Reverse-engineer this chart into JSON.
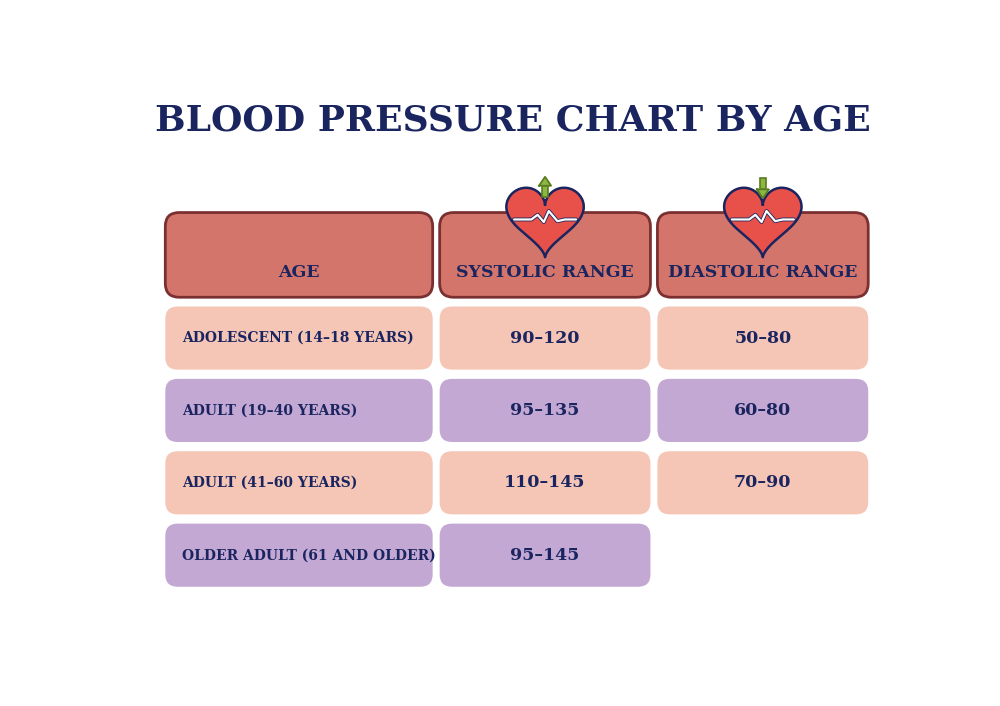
{
  "title": "BLOOD PRESSURE CHART BY AGE",
  "title_color": "#1a2560",
  "title_fontsize": 26,
  "header_color": "#d4756b",
  "header_text_color": "#1a2560",
  "row_pink_color": "#f5c5b5",
  "row_purple_color": "#c4a8d4",
  "row_text_color": "#1a2560",
  "headers": [
    "AGE",
    "SYSTOLIC RANGE",
    "DIASTOLIC RANGE"
  ],
  "rows": [
    {
      "age": "ADOLESCENT (14–18 YEARS)",
      "systolic": "90–120",
      "diastolic": "50–80",
      "color": "pink",
      "has_diastolic": true
    },
    {
      "age": "ADULT (19–40 YEARS)",
      "systolic": "95–135",
      "diastolic": "60–80",
      "color": "purple",
      "has_diastolic": true
    },
    {
      "age": "ADULT (41–60 YEARS)",
      "systolic": "110–145",
      "diastolic": "70–90",
      "color": "pink",
      "has_diastolic": true
    },
    {
      "age": "OLDER ADULT (61 AND OLDER)",
      "systolic": "95–145",
      "diastolic": "",
      "color": "purple",
      "has_diastolic": false
    }
  ],
  "arrow_color": "#8ab840",
  "arrow_border_color": "#5a7a20",
  "heart_color": "#e8504a",
  "heart_border_color": "#1a2560",
  "ecg_color": "#ffffff",
  "ecg_outline_color": "#1a2560"
}
